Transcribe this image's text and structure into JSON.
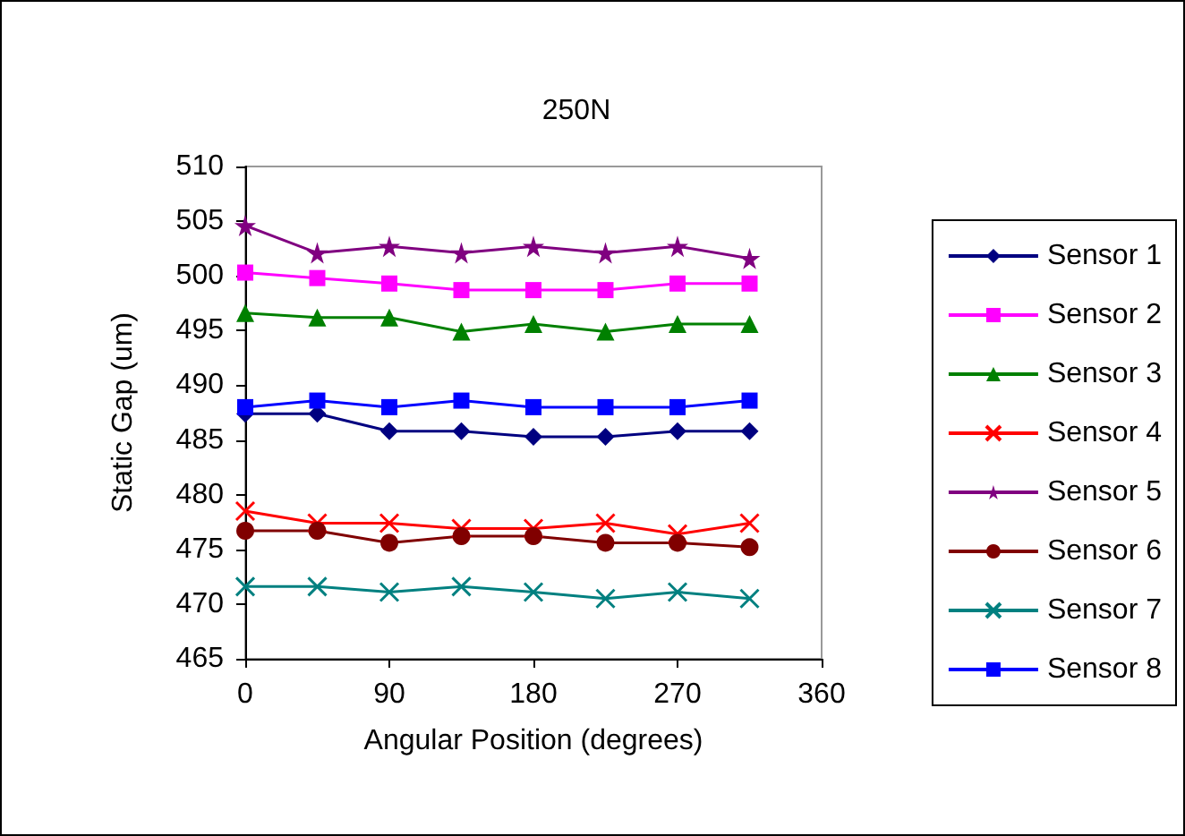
{
  "chart_data": {
    "type": "line",
    "title": "250N",
    "xlabel": "Angular Position (degrees)",
    "ylabel": "Static Gap (um)",
    "x": [
      0,
      45,
      90,
      135,
      180,
      225,
      270,
      315
    ],
    "xlim": [
      0,
      360
    ],
    "xticks": [
      0,
      90,
      180,
      270,
      360
    ],
    "ylim": [
      465,
      510
    ],
    "yticks": [
      465,
      470,
      475,
      480,
      485,
      490,
      495,
      500,
      505,
      510
    ],
    "grid": false,
    "legend": "right",
    "line_style": "solid",
    "series": [
      {
        "name": "Sensor 1",
        "color": "#000080",
        "marker": "diamond",
        "values": [
          487.4,
          487.4,
          485.8,
          485.8,
          485.3,
          485.3,
          485.8,
          485.8
        ]
      },
      {
        "name": "Sensor 2",
        "color": "#ff00ff",
        "marker": "square",
        "values": [
          500.3,
          499.8,
          499.3,
          498.7,
          498.7,
          498.7,
          499.3,
          499.3
        ]
      },
      {
        "name": "Sensor 3",
        "color": "#008000",
        "marker": "triangle",
        "values": [
          496.6,
          496.2,
          496.2,
          494.9,
          495.6,
          494.9,
          495.6,
          495.6
        ]
      },
      {
        "name": "Sensor 4",
        "color": "#ff0000",
        "marker": "cross",
        "values": [
          478.5,
          477.4,
          477.4,
          476.9,
          476.9,
          477.4,
          476.4,
          477.4
        ]
      },
      {
        "name": "Sensor 5",
        "color": "#800080",
        "marker": "star",
        "values": [
          504.6,
          502.1,
          502.7,
          502.1,
          502.7,
          502.1,
          502.7,
          501.6
        ]
      },
      {
        "name": "Sensor 6",
        "color": "#800000",
        "marker": "circle",
        "values": [
          476.7,
          476.7,
          475.6,
          476.2,
          476.2,
          475.6,
          475.6,
          475.2
        ]
      },
      {
        "name": "Sensor 7",
        "color": "#008080",
        "marker": "cross",
        "values": [
          471.6,
          471.6,
          471.1,
          471.6,
          471.1,
          470.5,
          471.1,
          470.5
        ]
      },
      {
        "name": "Sensor 8",
        "color": "#0000ff",
        "marker": "square",
        "values": [
          488.0,
          488.6,
          488.0,
          488.6,
          488.0,
          488.0,
          488.0,
          488.6
        ]
      }
    ]
  }
}
